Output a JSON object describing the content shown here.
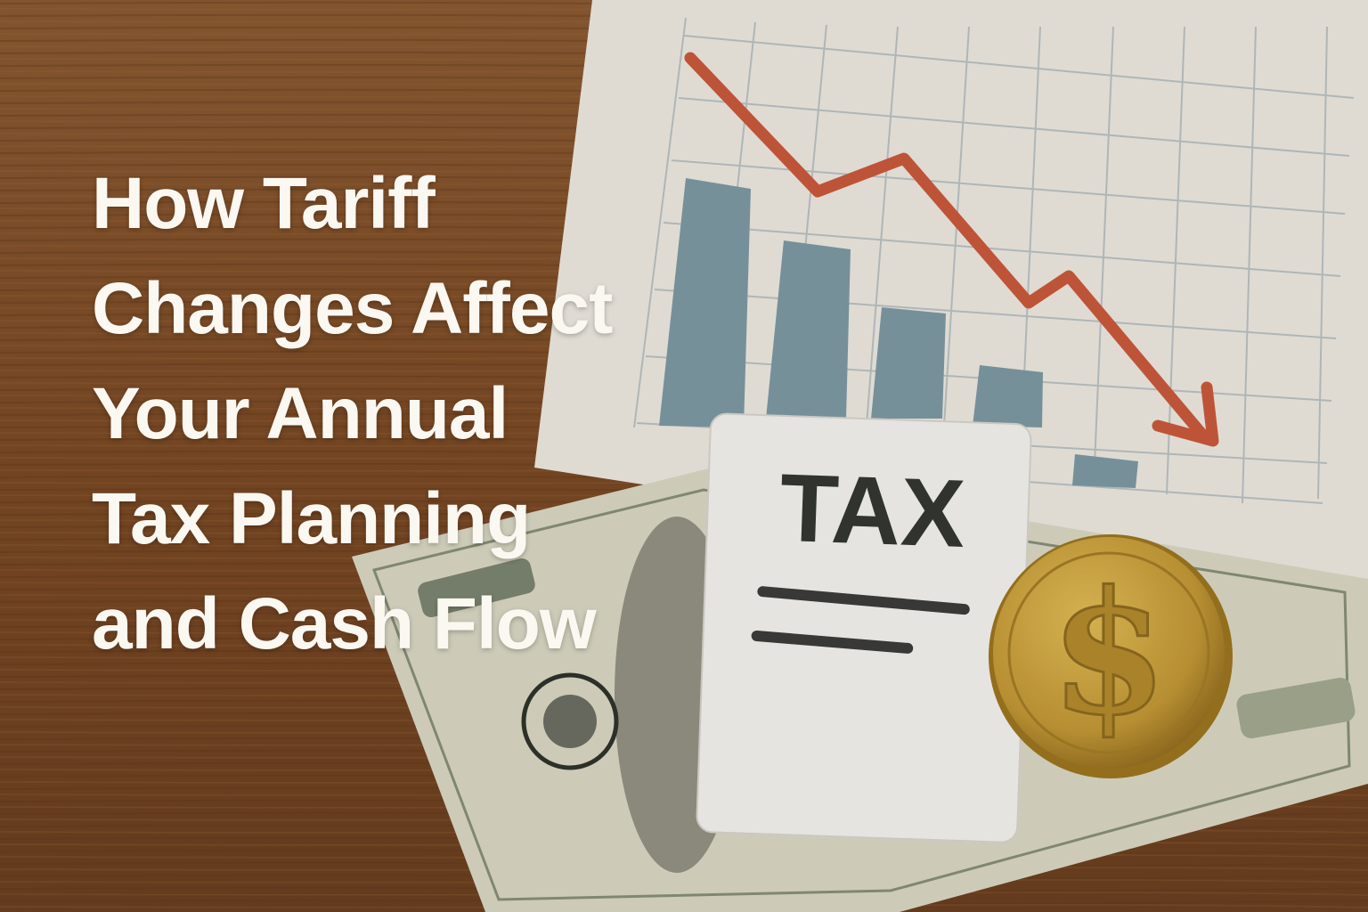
{
  "title": {
    "lines": [
      "How Tariff",
      "Changes Affect",
      "Your Annual",
      "Tax Planning",
      "and Cash Flow"
    ]
  },
  "tax_card": {
    "label": "TAX"
  },
  "coin": {
    "symbol": "$"
  },
  "colors": {
    "wood": "#7a4a26",
    "paper": "#ece8e0",
    "grid": "#b9c0c2",
    "bars": "#7d98a3",
    "trend_line": "#c9593a",
    "coin": "#c9a23a",
    "title_text": "#fbf8f2"
  },
  "icons": [
    "down-trend-arrow-icon",
    "dollar-coin-icon",
    "tax-document-icon"
  ]
}
